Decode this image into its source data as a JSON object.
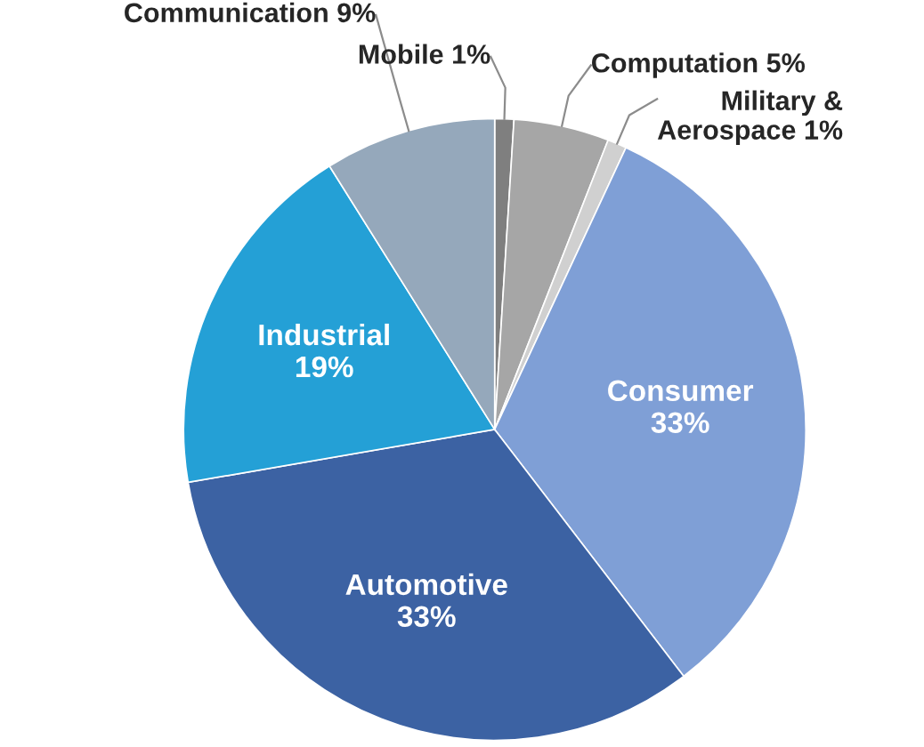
{
  "chart_data": {
    "type": "pie",
    "categories": [
      "Mobile",
      "Computation",
      "Military &\nAerospace",
      "Consumer",
      "Automotive",
      "Industrial",
      "Communication"
    ],
    "values": [
      1,
      5,
      1,
      33,
      33,
      19,
      9
    ],
    "value_labels": [
      "1%",
      "5%",
      "1%",
      "33%",
      "33%",
      "19%",
      "9%"
    ],
    "colors": [
      "#7f7f7f",
      "#a6a6a6",
      "#d0d0d0",
      "#7f9fd6",
      "#3c62a3",
      "#24a0d6",
      "#95a8bb"
    ],
    "legend": false
  }
}
